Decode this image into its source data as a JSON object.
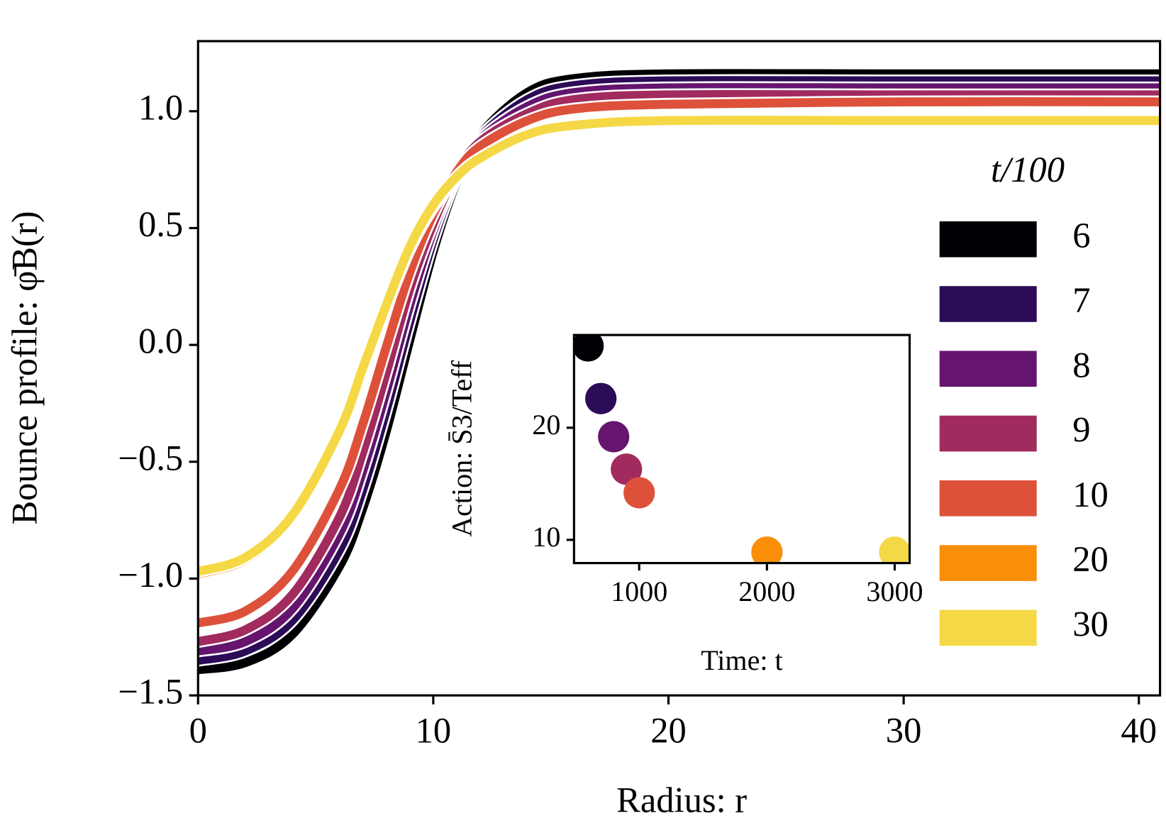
{
  "chart_data": [
    {
      "type": "line",
      "x_label": "Radius: r",
      "y_label": "Bounce profile: φ̄B(r)",
      "legend_title": "t/100",
      "legend": "right",
      "x": [
        0,
        2,
        4,
        6,
        7,
        8,
        9,
        10,
        11,
        12,
        14,
        16,
        20,
        30,
        41
      ],
      "series": [
        {
          "name": "6",
          "color": "#000004",
          "values": [
            -1.39,
            -1.36,
            -1.24,
            -0.95,
            -0.7,
            -0.37,
            0.02,
            0.4,
            0.7,
            0.9,
            1.08,
            1.14,
            1.16,
            1.16,
            1.16
          ]
        },
        {
          "name": "7",
          "color": "#2c0b57",
          "values": [
            -1.35,
            -1.31,
            -1.18,
            -0.88,
            -0.62,
            -0.28,
            0.1,
            0.45,
            0.72,
            0.89,
            1.05,
            1.11,
            1.13,
            1.13,
            1.13
          ]
        },
        {
          "name": "8",
          "color": "#65156e",
          "values": [
            -1.31,
            -1.27,
            -1.13,
            -0.81,
            -0.54,
            -0.2,
            0.17,
            0.49,
            0.73,
            0.88,
            1.02,
            1.08,
            1.1,
            1.1,
            1.1
          ]
        },
        {
          "name": "9",
          "color": "#a12a5e",
          "values": [
            -1.27,
            -1.22,
            -1.07,
            -0.74,
            -0.46,
            -0.12,
            0.24,
            0.52,
            0.74,
            0.87,
            0.99,
            1.05,
            1.07,
            1.07,
            1.07
          ]
        },
        {
          "name": "10",
          "color": "#dd513a",
          "values": [
            -1.19,
            -1.14,
            -0.97,
            -0.62,
            -0.34,
            -0.01,
            0.31,
            0.56,
            0.74,
            0.85,
            0.96,
            1.01,
            1.03,
            1.04,
            1.04
          ]
        },
        {
          "name": "20",
          "color": "#f98e09",
          "values": [
            -0.98,
            -0.92,
            -0.74,
            -0.38,
            -0.11,
            0.16,
            0.41,
            0.59,
            0.71,
            0.8,
            0.9,
            0.94,
            0.96,
            0.96,
            0.96
          ]
        },
        {
          "name": "30",
          "color": "#f5d845",
          "values": [
            -0.97,
            -0.91,
            -0.73,
            -0.37,
            -0.1,
            0.17,
            0.42,
            0.6,
            0.72,
            0.8,
            0.9,
            0.94,
            0.96,
            0.96,
            0.96
          ]
        }
      ],
      "xlim": [
        0,
        40.9
      ],
      "xticks": [
        0,
        10,
        20,
        30,
        40
      ],
      "ylim": [
        -1.5,
        1.3
      ],
      "yticks": [
        {
          "value": -1.5,
          "label": "−1.5"
        },
        {
          "value": -1.0,
          "label": "−1.0"
        },
        {
          "value": -0.5,
          "label": "−0.5"
        },
        {
          "value": 0.0,
          "label": "0.0"
        },
        0.5,
        {
          "value": 1.0,
          "label": "1.0"
        }
      ],
      "grid": false
    },
    {
      "type": "scatter",
      "x_label": "Time: t",
      "y_label": "Action: S̄3/Teff",
      "x": [
        600,
        700,
        800,
        900,
        1000,
        2000,
        3000
      ],
      "values": [
        27.3,
        22.6,
        19.2,
        16.3,
        14.2,
        8.9,
        8.9
      ],
      "colors": [
        "#000004",
        "#2c0b57",
        "#65156e",
        "#a12a5e",
        "#dd513a",
        "#f98e09",
        "#f5d845"
      ],
      "xlim": [
        490,
        3117
      ],
      "xticks": [
        1000,
        2000,
        3000
      ],
      "ylim": [
        7.93,
        28.27
      ],
      "yticks": [
        10,
        20
      ],
      "grid": false
    }
  ]
}
